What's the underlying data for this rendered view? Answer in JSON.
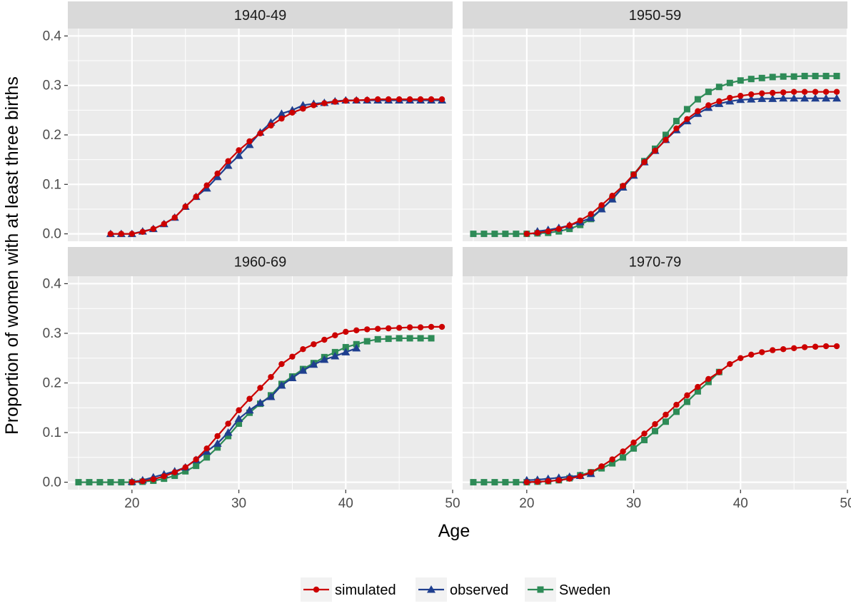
{
  "chart_data": {
    "type": "line",
    "xlabel": "Age",
    "ylabel": "Proportion of women with at least three births",
    "xlim": [
      14,
      50
    ],
    "ylim": [
      -0.015,
      0.415
    ],
    "x_ticks": [
      20,
      30,
      40,
      50
    ],
    "y_ticks": [
      0.0,
      0.1,
      0.2,
      0.3,
      0.4
    ],
    "x_tick_labels": [
      "20",
      "30",
      "40",
      "50"
    ],
    "y_tick_labels": [
      "0.0",
      "0.1",
      "0.2",
      "0.3",
      "0.4"
    ],
    "grid": true,
    "legend_position": "bottom",
    "legend": [
      {
        "name": "simulated",
        "color": "#cc0000",
        "marker": "circle"
      },
      {
        "name": "observed",
        "color": "#1f3f8f",
        "marker": "triangle"
      },
      {
        "name": "Sweden",
        "color": "#2e8b57",
        "marker": "square"
      }
    ],
    "panels": [
      {
        "title": "1940-49",
        "series": [
          {
            "name": "observed",
            "x": [
              18,
              19,
              20,
              21,
              22,
              23,
              24,
              25,
              26,
              27,
              28,
              29,
              30,
              31,
              32,
              33,
              34,
              35,
              36,
              37,
              38,
              39,
              40,
              41,
              42,
              43,
              44,
              45,
              46,
              47,
              48,
              49
            ],
            "y": [
              0.0,
              0.0,
              0.0,
              0.005,
              0.01,
              0.02,
              0.033,
              0.055,
              0.075,
              0.092,
              0.115,
              0.138,
              0.158,
              0.18,
              0.205,
              0.225,
              0.243,
              0.25,
              0.26,
              0.263,
              0.265,
              0.268,
              0.27,
              0.27,
              0.27,
              0.27,
              0.27,
              0.27,
              0.27,
              0.27,
              0.27,
              0.27
            ]
          },
          {
            "name": "simulated",
            "x": [
              18,
              19,
              20,
              21,
              22,
              23,
              24,
              25,
              26,
              27,
              28,
              29,
              30,
              31,
              32,
              33,
              34,
              35,
              36,
              37,
              38,
              39,
              40,
              41,
              42,
              43,
              44,
              45,
              46,
              47,
              48,
              49
            ],
            "y": [
              0.0,
              0.0,
              0.0,
              0.004,
              0.01,
              0.02,
              0.033,
              0.055,
              0.075,
              0.098,
              0.122,
              0.147,
              0.169,
              0.187,
              0.203,
              0.219,
              0.233,
              0.245,
              0.253,
              0.26,
              0.264,
              0.267,
              0.269,
              0.27,
              0.271,
              0.272,
              0.272,
              0.272,
              0.272,
              0.272,
              0.272,
              0.272
            ]
          }
        ]
      },
      {
        "title": "1950-59",
        "series": [
          {
            "name": "Sweden",
            "x": [
              15,
              16,
              17,
              18,
              19,
              20,
              21,
              22,
              23,
              24,
              25,
              26,
              27,
              28,
              29,
              30,
              31,
              32,
              33,
              34,
              35,
              36,
              37,
              38,
              39,
              40,
              41,
              42,
              43,
              44,
              45,
              46,
              47,
              48,
              49
            ],
            "y": [
              0.0,
              0.0,
              0.0,
              0.0,
              0.0,
              0.0,
              0.001,
              0.002,
              0.005,
              0.01,
              0.018,
              0.03,
              0.05,
              0.07,
              0.095,
              0.12,
              0.147,
              0.172,
              0.2,
              0.228,
              0.252,
              0.272,
              0.287,
              0.297,
              0.305,
              0.31,
              0.313,
              0.315,
              0.317,
              0.318,
              0.318,
              0.319,
              0.319,
              0.319,
              0.319
            ]
          },
          {
            "name": "observed",
            "x": [
              21,
              22,
              23,
              24,
              25,
              26,
              27,
              28,
              29,
              30,
              31,
              32,
              33,
              34,
              35,
              36,
              37,
              38,
              39,
              40,
              41,
              42,
              43,
              44,
              45,
              46,
              47,
              48,
              49
            ],
            "y": [
              0.005,
              0.008,
              0.012,
              0.017,
              0.024,
              0.032,
              0.05,
              0.07,
              0.094,
              0.118,
              0.145,
              0.168,
              0.19,
              0.21,
              0.228,
              0.243,
              0.255,
              0.263,
              0.268,
              0.271,
              0.272,
              0.273,
              0.273,
              0.274,
              0.274,
              0.274,
              0.274,
              0.274,
              0.274
            ]
          },
          {
            "name": "simulated",
            "x": [
              20,
              21,
              22,
              23,
              24,
              25,
              26,
              27,
              28,
              29,
              30,
              31,
              32,
              33,
              34,
              35,
              36,
              37,
              38,
              39,
              40,
              41,
              42,
              43,
              44,
              45,
              46,
              47,
              48,
              49
            ],
            "y": [
              0.0,
              0.002,
              0.005,
              0.01,
              0.017,
              0.027,
              0.04,
              0.058,
              0.077,
              0.097,
              0.12,
              0.145,
              0.168,
              0.19,
              0.213,
              0.232,
              0.248,
              0.26,
              0.268,
              0.275,
              0.279,
              0.282,
              0.284,
              0.285,
              0.286,
              0.287,
              0.287,
              0.287,
              0.287,
              0.287
            ]
          }
        ]
      },
      {
        "title": "1960-69",
        "series": [
          {
            "name": "Sweden",
            "x": [
              15,
              16,
              17,
              18,
              19,
              20,
              21,
              22,
              23,
              24,
              25,
              26,
              27,
              28,
              29,
              30,
              31,
              32,
              33,
              34,
              35,
              36,
              37,
              38,
              39,
              40,
              41,
              42,
              43,
              44,
              45,
              46,
              47,
              48
            ],
            "y": [
              0.0,
              0.0,
              0.0,
              0.0,
              0.0,
              0.0,
              0.001,
              0.003,
              0.007,
              0.013,
              0.022,
              0.033,
              0.05,
              0.07,
              0.093,
              0.118,
              0.14,
              0.158,
              0.175,
              0.198,
              0.213,
              0.228,
              0.24,
              0.252,
              0.262,
              0.272,
              0.278,
              0.284,
              0.288,
              0.289,
              0.29,
              0.29,
              0.29,
              0.29
            ]
          },
          {
            "name": "observed",
            "x": [
              20,
              21,
              22,
              23,
              24,
              25,
              26,
              27,
              28,
              29,
              30,
              31,
              32,
              33,
              34,
              35,
              36,
              37,
              38,
              39,
              40,
              41
            ],
            "y": [
              0.001,
              0.004,
              0.01,
              0.016,
              0.022,
              0.03,
              0.045,
              0.062,
              0.078,
              0.1,
              0.128,
              0.145,
              0.16,
              0.172,
              0.195,
              0.21,
              0.225,
              0.237,
              0.247,
              0.254,
              0.262,
              0.27
            ]
          },
          {
            "name": "simulated",
            "x": [
              20,
              21,
              22,
              23,
              24,
              25,
              26,
              27,
              28,
              29,
              30,
              31,
              32,
              33,
              34,
              35,
              36,
              37,
              38,
              39,
              40,
              41,
              42,
              43,
              44,
              45,
              46,
              47,
              48,
              49
            ],
            "y": [
              0.0,
              0.002,
              0.006,
              0.012,
              0.02,
              0.03,
              0.046,
              0.068,
              0.093,
              0.118,
              0.145,
              0.168,
              0.19,
              0.212,
              0.238,
              0.253,
              0.268,
              0.278,
              0.287,
              0.296,
              0.303,
              0.306,
              0.308,
              0.309,
              0.31,
              0.311,
              0.312,
              0.312,
              0.313,
              0.313
            ]
          }
        ]
      },
      {
        "title": "1970-79",
        "series": [
          {
            "name": "Sweden",
            "x": [
              15,
              16,
              17,
              18,
              19,
              20,
              21,
              22,
              23,
              24,
              25,
              26,
              27,
              28,
              29,
              30,
              31,
              32,
              33,
              34,
              35,
              36,
              37,
              38
            ],
            "y": [
              0.0,
              0.0,
              0.0,
              0.0,
              0.0,
              0.0,
              0.001,
              0.002,
              0.004,
              0.008,
              0.014,
              0.02,
              0.028,
              0.038,
              0.05,
              0.068,
              0.085,
              0.103,
              0.122,
              0.142,
              0.162,
              0.183,
              0.202,
              0.222
            ]
          },
          {
            "name": "observed",
            "x": [
              20,
              21,
              22,
              23,
              24,
              25,
              26
            ],
            "y": [
              0.004,
              0.005,
              0.007,
              0.009,
              0.011,
              0.013,
              0.017
            ]
          },
          {
            "name": "simulated",
            "x": [
              20,
              21,
              22,
              23,
              24,
              25,
              26,
              27,
              28,
              29,
              30,
              31,
              32,
              33,
              34,
              35,
              36,
              37,
              38,
              39,
              40,
              41,
              42,
              43,
              44,
              45,
              46,
              47,
              48,
              49
            ],
            "y": [
              0.0,
              0.001,
              0.002,
              0.004,
              0.007,
              0.012,
              0.02,
              0.032,
              0.046,
              0.062,
              0.08,
              0.098,
              0.117,
              0.136,
              0.156,
              0.175,
              0.192,
              0.208,
              0.222,
              0.238,
              0.25,
              0.257,
              0.262,
              0.266,
              0.268,
              0.27,
              0.272,
              0.273,
              0.274,
              0.274
            ]
          }
        ]
      }
    ]
  }
}
